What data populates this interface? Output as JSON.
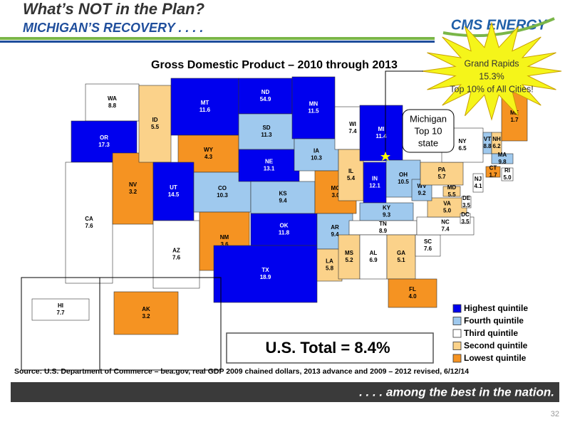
{
  "header": {
    "title": "What’s NOT in the Plan?",
    "subtitle": "MICHIGAN’S RECOVERY . . . .",
    "logo": "CMS ENERGY"
  },
  "map": {
    "title": "Gross Domestic Product – 2010 through 2013",
    "legend": [
      {
        "name": "Highest quintile",
        "color": "#0000ee"
      },
      {
        "name": "Fourth quintile",
        "color": "#9fc9ee"
      },
      {
        "name": "Third quintile",
        "color": "#ffffff"
      },
      {
        "name": "Second quintile",
        "color": "#fbd28a"
      },
      {
        "name": "Lowest quintile",
        "color": "#f59322"
      }
    ],
    "states": [
      {
        "abbr": "WA",
        "value": "8.8",
        "quintile": 2
      },
      {
        "abbr": "OR",
        "value": "17.3",
        "quintile": 0
      },
      {
        "abbr": "CA",
        "value": "7.6",
        "quintile": 2
      },
      {
        "abbr": "NV",
        "value": "3.2",
        "quintile": 4
      },
      {
        "abbr": "ID",
        "value": "5.5",
        "quintile": 3
      },
      {
        "abbr": "MT",
        "value": "11.6",
        "quintile": 0
      },
      {
        "abbr": "WY",
        "value": "4.3",
        "quintile": 4
      },
      {
        "abbr": "UT",
        "value": "14.5",
        "quintile": 0
      },
      {
        "abbr": "CO",
        "value": "10.3",
        "quintile": 1
      },
      {
        "abbr": "AZ",
        "value": "7.6",
        "quintile": 2
      },
      {
        "abbr": "NM",
        "value": "3.6",
        "quintile": 4
      },
      {
        "abbr": "ND",
        "value": "54.9",
        "quintile": 0
      },
      {
        "abbr": "SD",
        "value": "11.3",
        "quintile": 1
      },
      {
        "abbr": "NE",
        "value": "13.1",
        "quintile": 0
      },
      {
        "abbr": "KS",
        "value": "9.4",
        "quintile": 1
      },
      {
        "abbr": "OK",
        "value": "11.8",
        "quintile": 0
      },
      {
        "abbr": "TX",
        "value": "18.9",
        "quintile": 0
      },
      {
        "abbr": "MN",
        "value": "11.5",
        "quintile": 0
      },
      {
        "abbr": "IA",
        "value": "10.3",
        "quintile": 1
      },
      {
        "abbr": "MO",
        "value": "3.0",
        "quintile": 4
      },
      {
        "abbr": "AR",
        "value": "9.4",
        "quintile": 1
      },
      {
        "abbr": "LA",
        "value": "5.8",
        "quintile": 3
      },
      {
        "abbr": "WI",
        "value": "7.4",
        "quintile": 2
      },
      {
        "abbr": "IL",
        "value": "5.4",
        "quintile": 3
      },
      {
        "abbr": "MI",
        "value": "11.4",
        "quintile": 0
      },
      {
        "abbr": "IN",
        "value": "12.1",
        "quintile": 0
      },
      {
        "abbr": "OH",
        "value": "10.5",
        "quintile": 1
      },
      {
        "abbr": "KY",
        "value": "9.3",
        "quintile": 1
      },
      {
        "abbr": "TN",
        "value": "8.9",
        "quintile": 2
      },
      {
        "abbr": "MS",
        "value": "5.2",
        "quintile": 3
      },
      {
        "abbr": "AL",
        "value": "6.9",
        "quintile": 2
      },
      {
        "abbr": "GA",
        "value": "5.1",
        "quintile": 3
      },
      {
        "abbr": "FL",
        "value": "4.0",
        "quintile": 4
      },
      {
        "abbr": "SC",
        "value": "7.6",
        "quintile": 2
      },
      {
        "abbr": "NC",
        "value": "7.4",
        "quintile": 2
      },
      {
        "abbr": "VA",
        "value": "5.0",
        "quintile": 3
      },
      {
        "abbr": "WV",
        "value": "9.2",
        "quintile": 1
      },
      {
        "abbr": "PA",
        "value": "5.7",
        "quintile": 3
      },
      {
        "abbr": "NY",
        "value": "6.5",
        "quintile": 2
      },
      {
        "abbr": "VT",
        "value": "8.8",
        "quintile": 1
      },
      {
        "abbr": "NH",
        "value": "6.2",
        "quintile": 3
      },
      {
        "abbr": "ME",
        "value": "1.7",
        "quintile": 4
      },
      {
        "abbr": "MA",
        "value": "9.8",
        "quintile": 1
      },
      {
        "abbr": "RI",
        "value": "5.0",
        "quintile": 2
      },
      {
        "abbr": "CT",
        "value": "1.7",
        "quintile": 4
      },
      {
        "abbr": "NJ",
        "value": "4.1",
        "quintile": 2
      },
      {
        "abbr": "DE",
        "value": "3.5",
        "quintile": 2
      },
      {
        "abbr": "MD",
        "value": "5.5",
        "quintile": 3
      },
      {
        "abbr": "DC",
        "value": "3.5",
        "quintile": 2
      },
      {
        "abbr": "HI",
        "value": "7.7",
        "quintile": 2
      },
      {
        "abbr": "AK",
        "value": "3.2",
        "quintile": 4
      }
    ],
    "starburst": [
      "Grand Rapids",
      "15.3%",
      "Top 10% of All Cities!"
    ],
    "callout": [
      "Michigan",
      "Top 10",
      "state"
    ],
    "total": "U.S. Total = 8.4%",
    "source": "Source:  U.S. Department of Commerce – bea.gov, real GDP 2009 chained dollars, 2013 advance and 2009 – 2012 revised, 6/12/14"
  },
  "banner": ". . . . among the best in the nation.",
  "page_number": "32"
}
